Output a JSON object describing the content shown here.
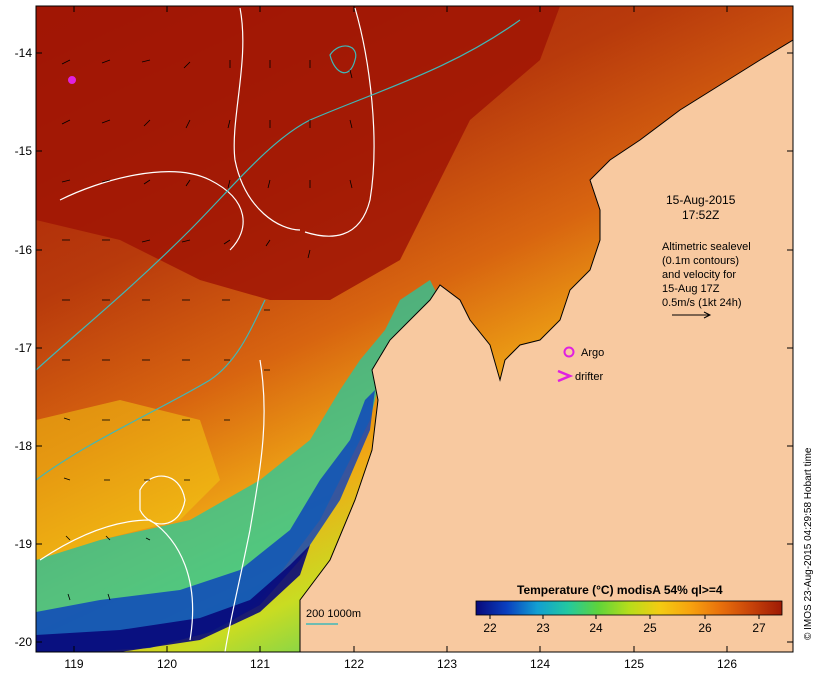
{
  "map": {
    "lon_ticks": [
      "119",
      "120",
      "121",
      "122",
      "123",
      "124",
      "125",
      "126"
    ],
    "lat_ticks": [
      "-14",
      "-15",
      "-16",
      "-17",
      "-18",
      "-19",
      "-20"
    ],
    "timestamp_date": "15-Aug-2015",
    "timestamp_time": "17:52Z",
    "altimetry_note": [
      "Altimetric sealevel",
      "(0.1m contours)",
      "and velocity for",
      "15-Aug 17Z",
      "0.5m/s (1kt 24h)"
    ],
    "legend_argo": "Argo",
    "legend_drifter": "drifter",
    "depth_contours": "200  1000m",
    "colorbar_title": "Temperature (°C) modisA 54% ql>=4",
    "colorbar_ticks": [
      "22",
      "23",
      "24",
      "25",
      "26",
      "27"
    ],
    "credit": "© IMOS 23-Aug-2015 04:29:58 Hobart time",
    "colors": {
      "land": "#f8c9a0",
      "sst_scale": [
        "#08087a",
        "#0a3fbf",
        "#129fd2",
        "#22c9a0",
        "#5fd43a",
        "#b6dd1b",
        "#f3cc12",
        "#f7a30f",
        "#e8700c",
        "#c7430a",
        "#9e1a05"
      ],
      "argo": "#e020e0",
      "drifter": "#e020e0",
      "contour": "#ffffff",
      "isobath": "#40b8b8"
    }
  }
}
